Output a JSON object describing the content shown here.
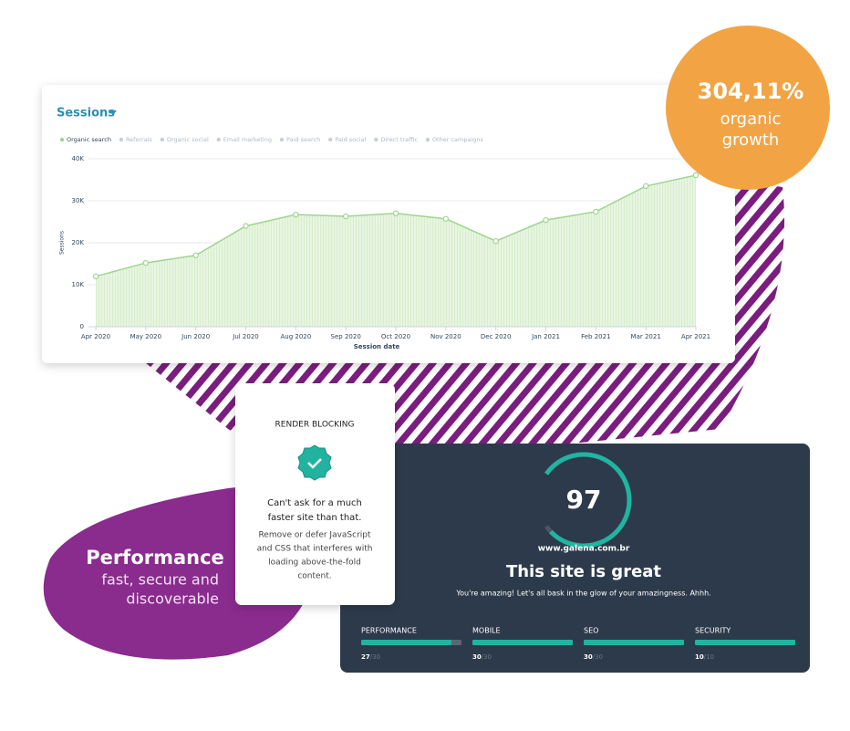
{
  "badge": {
    "value": "304,11%",
    "line1": "organic",
    "line2": "growth"
  },
  "chart_data": {
    "type": "area",
    "title": "Sessions",
    "x_label": "Session date",
    "y_label": "Sessions",
    "categories": [
      "Apr 2020",
      "May 2020",
      "Jun 2020",
      "Jul 2020",
      "Aug 2020",
      "Sep 2020",
      "Oct 2020",
      "Nov 2020",
      "Dec 2020",
      "Jan 2021",
      "Feb 2021",
      "Mar 2021",
      "Apr 2021"
    ],
    "series": [
      {
        "name": "Organic search",
        "color": "#9fd58f",
        "values": [
          12000,
          15200,
          17000,
          24000,
          26700,
          26300,
          27000,
          25700,
          20400,
          25400,
          27400,
          33500,
          36100
        ]
      }
    ],
    "inactive_legend": [
      "Referrals",
      "Organic social",
      "Email marketing",
      "Paid search",
      "Paid social",
      "Direct traffic",
      "Other campaigns"
    ],
    "ylim": [
      0,
      40000
    ],
    "yticks": [
      0,
      {
        "value": 10000,
        "label": "10K"
      },
      {
        "value": 20000,
        "label": "20K"
      },
      {
        "value": 30000,
        "label": "30K"
      },
      {
        "value": 40000,
        "label": "40K"
      }
    ],
    "grid": true
  },
  "performance": {
    "title": "Performance",
    "line1": "fast, secure and",
    "line2": "discoverable"
  },
  "render_card": {
    "title": "RENDER BLOCKING",
    "headline": [
      "Can't ask for a much",
      "faster site than that."
    ],
    "body": [
      "Remove or defer JavaScript",
      "and CSS that interferes with",
      "loading above-the-fold",
      "content."
    ]
  },
  "score_card": {
    "score": 97,
    "score_range": [
      0,
      100
    ],
    "site": "www.galena.com.br",
    "title": "This site is great",
    "subtitle": "You're amazing! Let's all bask in the glow of your amazingness. Ahhh.",
    "metrics": [
      {
        "name": "PERFORMANCE",
        "value": 27,
        "max": {
          "value": 30,
          "label": "/30"
        }
      },
      {
        "name": "MOBILE",
        "value": 30,
        "max": {
          "value": 30,
          "label": "/30"
        }
      },
      {
        "name": "SEO",
        "value": 30,
        "max": {
          "value": 30,
          "label": "/30"
        }
      },
      {
        "name": "SECURITY",
        "value": 10,
        "max": {
          "value": 10,
          "label": "/10"
        }
      }
    ]
  }
}
